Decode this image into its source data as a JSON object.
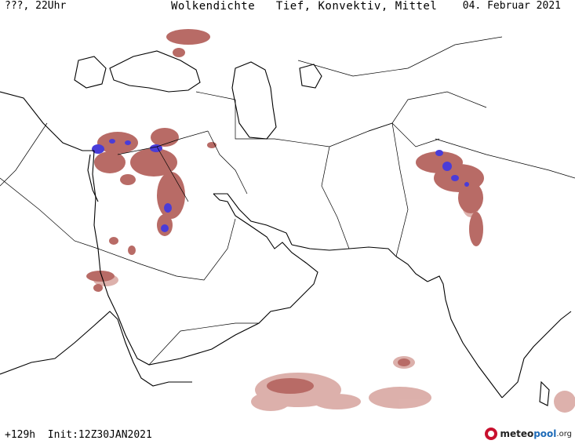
{
  "header": {
    "left": "???, 22Uhr",
    "title": "Wolkendichte   Tief, Konvektiv, Mittel",
    "date": "04. Februar 2021"
  },
  "footer": {
    "run_info": "+129h  Init:12Z30JAN2021"
  },
  "logo": {
    "part1": "meteo",
    "part2": "pool",
    "part3": ".org"
  },
  "colors": {
    "coast": "#000000",
    "border": "#000000",
    "cloud_low": "#d9a8a3",
    "cloud_mid": "#b86b66",
    "cloud_high": "#8c3a35",
    "convective": "#4a3cd8",
    "logo_accent": "#c8102e"
  }
}
